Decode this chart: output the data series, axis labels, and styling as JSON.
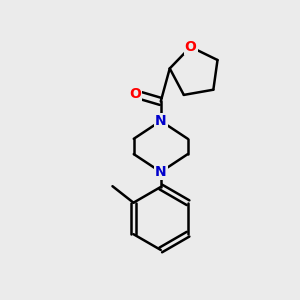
{
  "bg_color": "#ebebeb",
  "bond_color": "#000000",
  "N_color": "#0000cc",
  "O_color": "#ff0000",
  "line_width": 1.8,
  "figsize": [
    3.0,
    3.0
  ],
  "dpi": 100,
  "xlim": [
    0,
    10
  ],
  "ylim": [
    0,
    10
  ]
}
